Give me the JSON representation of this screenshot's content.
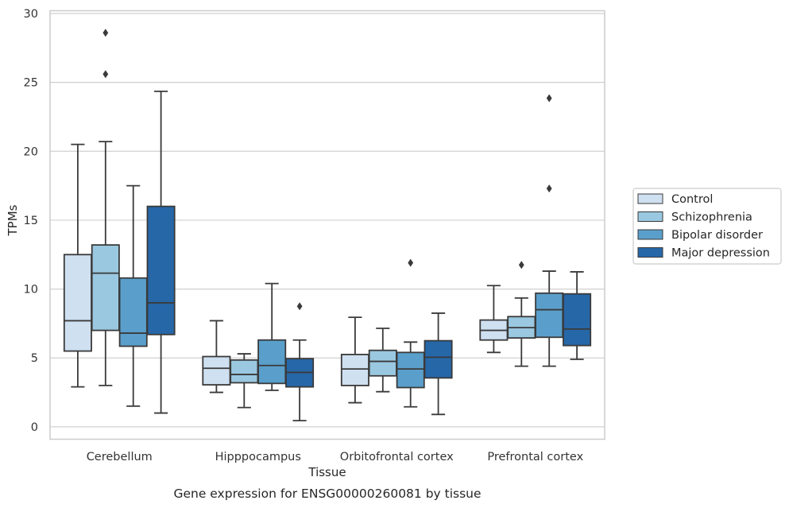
{
  "caption": "Gene expression for ENSG00000260081 by tissue",
  "chart_data": {
    "type": "box",
    "xlabel": "Tissue",
    "ylabel": "TPMs",
    "ylim": [
      -0.9,
      30.2
    ],
    "yticks": [
      0,
      5,
      10,
      15,
      20,
      25,
      30
    ],
    "grid": "horizontal",
    "legend_position": "right",
    "categories": [
      "Cerebellum",
      "Hipppocampus",
      "Orbitofrontal cortex",
      "Prefrontal cortex"
    ],
    "series": [
      {
        "name": "Control",
        "color": "#cfe0f1",
        "boxes": [
          {
            "whisker_low": 2.9,
            "q1": 5.5,
            "median": 7.7,
            "q3": 12.5,
            "whisker_high": 20.5,
            "outliers": []
          },
          {
            "whisker_low": 2.5,
            "q1": 3.05,
            "median": 4.25,
            "q3": 5.1,
            "whisker_high": 7.7,
            "outliers": []
          },
          {
            "whisker_low": 1.75,
            "q1": 3.0,
            "median": 4.2,
            "q3": 5.25,
            "whisker_high": 7.95,
            "outliers": []
          },
          {
            "whisker_low": 5.4,
            "q1": 6.3,
            "median": 7.0,
            "q3": 7.75,
            "whisker_high": 10.25,
            "outliers": []
          }
        ]
      },
      {
        "name": "Schizophrenia",
        "color": "#9ac8e0",
        "boxes": [
          {
            "whisker_low": 3.0,
            "q1": 7.0,
            "median": 11.15,
            "q3": 13.2,
            "whisker_high": 20.7,
            "outliers": [
              25.6,
              28.6
            ]
          },
          {
            "whisker_low": 1.4,
            "q1": 3.2,
            "median": 3.8,
            "q3": 4.85,
            "whisker_high": 5.3,
            "outliers": []
          },
          {
            "whisker_low": 2.55,
            "q1": 3.7,
            "median": 4.75,
            "q3": 5.55,
            "whisker_high": 7.15,
            "outliers": []
          },
          {
            "whisker_low": 4.4,
            "q1": 6.45,
            "median": 7.2,
            "q3": 8.0,
            "whisker_high": 9.35,
            "outliers": [
              11.75
            ]
          }
        ]
      },
      {
        "name": "Bipolar disorder",
        "color": "#5a9fcb",
        "boxes": [
          {
            "whisker_low": 1.5,
            "q1": 5.85,
            "median": 6.8,
            "q3": 10.8,
            "whisker_high": 17.5,
            "outliers": []
          },
          {
            "whisker_low": 2.65,
            "q1": 3.15,
            "median": 4.45,
            "q3": 6.3,
            "whisker_high": 10.4,
            "outliers": []
          },
          {
            "whisker_low": 1.45,
            "q1": 2.85,
            "median": 4.2,
            "q3": 5.4,
            "whisker_high": 6.15,
            "outliers": [
              11.9
            ]
          },
          {
            "whisker_low": 4.4,
            "q1": 6.5,
            "median": 8.5,
            "q3": 9.7,
            "whisker_high": 11.3,
            "outliers": [
              17.3,
              23.85
            ]
          }
        ]
      },
      {
        "name": "Major depression",
        "color": "#2667a8",
        "boxes": [
          {
            "whisker_low": 1.0,
            "q1": 6.7,
            "median": 9.0,
            "q3": 16.0,
            "whisker_high": 24.35,
            "outliers": []
          },
          {
            "whisker_low": 0.45,
            "q1": 2.9,
            "median": 3.95,
            "q3": 4.95,
            "whisker_high": 6.3,
            "outliers": [
              8.75
            ]
          },
          {
            "whisker_low": 0.9,
            "q1": 3.55,
            "median": 5.05,
            "q3": 6.25,
            "whisker_high": 8.25,
            "outliers": []
          },
          {
            "whisker_low": 4.9,
            "q1": 5.9,
            "median": 7.1,
            "q3": 9.65,
            "whisker_high": 11.25,
            "outliers": []
          }
        ]
      }
    ]
  }
}
